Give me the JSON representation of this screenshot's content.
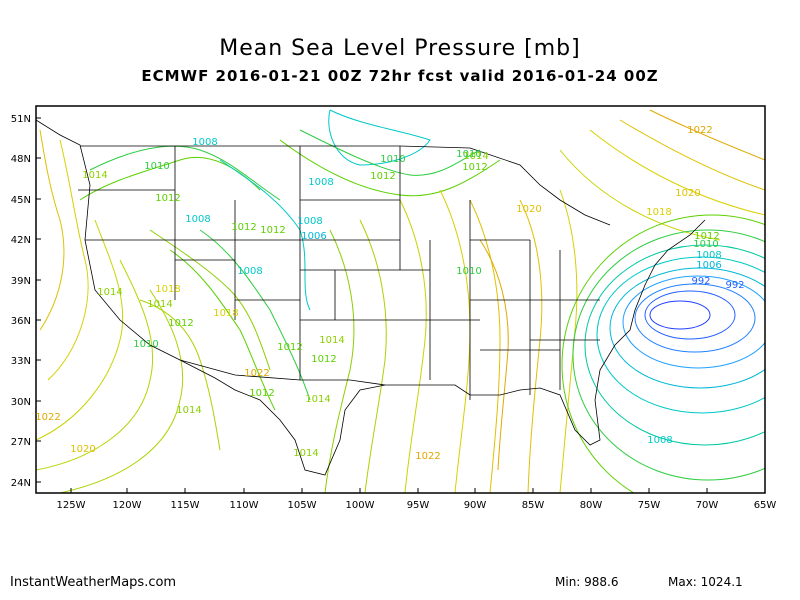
{
  "title": "Mean Sea Level Pressure [mb]",
  "subtitle": "ECMWF 2016-01-21 00Z 72hr fcst valid 2016-01-24 00Z",
  "footer": {
    "site": "InstantWeatherMaps.com",
    "min": "Min:  988.6",
    "max": "Max: 1024.1"
  },
  "map": {
    "lat_ticks": [
      "51N",
      "48N",
      "45N",
      "42N",
      "39N",
      "36N",
      "33N",
      "30N",
      "27N",
      "24N"
    ],
    "lon_ticks": [
      "125W",
      "120W",
      "115W",
      "110W",
      "105W",
      "100W",
      "95W",
      "90W",
      "85W",
      "80W",
      "75W",
      "70W",
      "65W"
    ],
    "contour_labels": [
      {
        "text": "1008",
        "color": "#00c8c8"
      },
      {
        "text": "1010",
        "color": "#2ecc40"
      },
      {
        "text": "1014",
        "color": "#8ccf00"
      },
      {
        "text": "1012",
        "color": "#5cd000"
      },
      {
        "text": "1008",
        "color": "#00c8c8"
      },
      {
        "text": "1008",
        "color": "#00c8c8"
      },
      {
        "text": "1010",
        "color": "#2ecc40"
      },
      {
        "text": "1012",
        "color": "#5cd000"
      },
      {
        "text": "1014",
        "color": "#8ccf00"
      },
      {
        "text": "1010",
        "color": "#2ecc40"
      },
      {
        "text": "1022",
        "color": "#e0a800"
      },
      {
        "text": "1020",
        "color": "#e0c000"
      },
      {
        "text": "1020",
        "color": "#e0c000"
      },
      {
        "text": "1018",
        "color": "#d8d000"
      },
      {
        "text": "1012",
        "color": "#5cd000"
      },
      {
        "text": "1012",
        "color": "#5cd000"
      },
      {
        "text": "1012",
        "color": "#5cd000"
      },
      {
        "text": "1008",
        "color": "#00c8c8"
      },
      {
        "text": "1006",
        "color": "#00b8d8"
      },
      {
        "text": "1008",
        "color": "#00c8c8"
      },
      {
        "text": "1014",
        "color": "#8ccf00"
      },
      {
        "text": "1018",
        "color": "#d8d000"
      },
      {
        "text": "1014",
        "color": "#8ccf00"
      },
      {
        "text": "1012",
        "color": "#5cd000"
      },
      {
        "text": "1010",
        "color": "#2ecc40"
      },
      {
        "text": "1018",
        "color": "#d8d000"
      },
      {
        "text": "1012",
        "color": "#5cd000"
      },
      {
        "text": "1014",
        "color": "#8ccf00"
      },
      {
        "text": "1012",
        "color": "#5cd000"
      },
      {
        "text": "1010",
        "color": "#2ecc40"
      },
      {
        "text": "1022",
        "color": "#e0a800"
      },
      {
        "text": "1012",
        "color": "#5cd000"
      },
      {
        "text": "1014",
        "color": "#8ccf00"
      },
      {
        "text": "1014",
        "color": "#8ccf00"
      },
      {
        "text": "1022",
        "color": "#e0a800"
      },
      {
        "text": "1020",
        "color": "#e0c000"
      },
      {
        "text": "1014",
        "color": "#8ccf00"
      },
      {
        "text": "1022",
        "color": "#e0a800"
      },
      {
        "text": "1012",
        "color": "#5cd000"
      },
      {
        "text": "1010",
        "color": "#2ecc40"
      },
      {
        "text": "1008",
        "color": "#00c8c8"
      },
      {
        "text": "1006",
        "color": "#00b8d8"
      },
      {
        "text": "992",
        "color": "#2060ff"
      },
      {
        "text": "992",
        "color": "#2060ff"
      },
      {
        "text": "1008",
        "color": "#00c8c8"
      }
    ],
    "colors": {
      "land_border": "#000000",
      "frame": "#000000",
      "high": "#e0a800",
      "low": "#2040ff"
    }
  }
}
